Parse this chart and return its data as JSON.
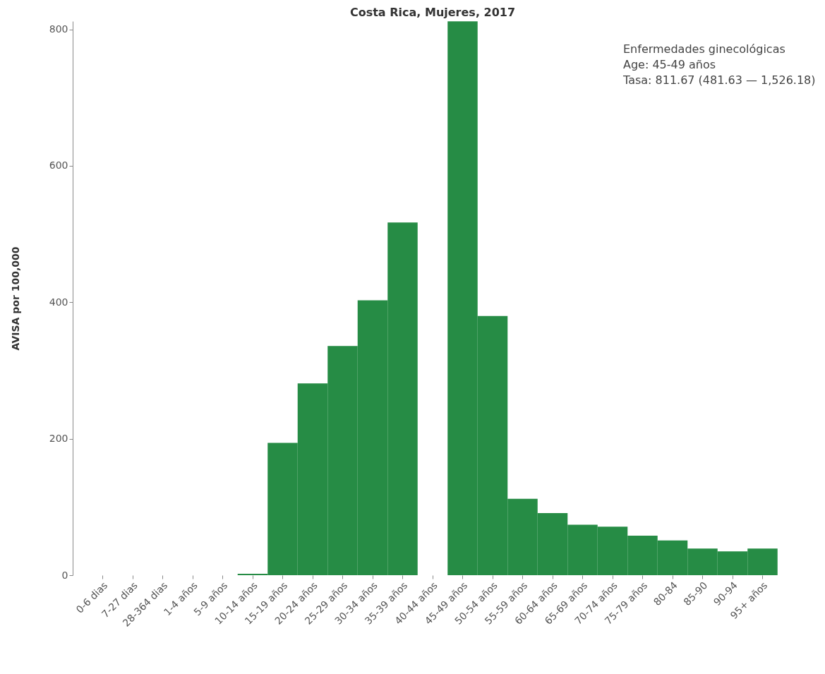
{
  "chart_data": {
    "type": "bar",
    "title": "Costa Rica, Mujeres, 2017",
    "ylabel": "AVISA por 100,000",
    "categories": [
      "0-6 dias",
      "7-27 dias",
      "28-364 dias",
      "1-4 años",
      "5-9 años",
      "10-14 años",
      "15-19 años",
      "20-24 años",
      "25-29 años",
      "30-34 años",
      "35-39 años",
      "40-44 años",
      "45-49 años",
      "50-54 años",
      "55-59 años",
      "60-64 años",
      "65-69 años",
      "70-74 años",
      "75-79 años",
      "80-84",
      "85-90",
      "90-94",
      "95+ años"
    ],
    "values": [
      0,
      0,
      0,
      0,
      0,
      2,
      194,
      281,
      336,
      403,
      517,
      null,
      811.67,
      380,
      112,
      91,
      74,
      71,
      58,
      51,
      39,
      35,
      39
    ],
    "color": "#268c45",
    "ylim": [
      0,
      812
    ],
    "yticks": [
      0,
      200,
      400,
      600,
      800
    ],
    "grid": false,
    "annotations": [
      "Enfermedades ginecológicas",
      "Age: 45-49 años",
      "Tasa: 811.67 (481.63 — 1,526.18)"
    ]
  }
}
